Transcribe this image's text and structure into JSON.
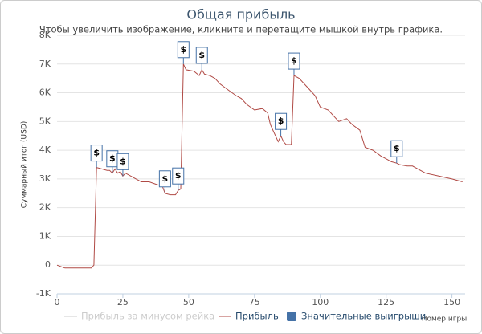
{
  "chart_data": {
    "type": "line",
    "title": "Общая прибыль",
    "subtitle": "Чтобы увеличить изображение, кликните и перетащите мышкой внутрь графика.",
    "y_label": "Суммарный итог (USD)",
    "x_label": "Номер игры",
    "xlim": [
      0,
      155
    ],
    "xticks": [
      0,
      25,
      50,
      75,
      100,
      125,
      150
    ],
    "ylim": [
      -1000,
      8000
    ],
    "yticks": [
      {
        "value": -1000,
        "label": "-1K"
      },
      0,
      {
        "value": 1000,
        "label": "1K"
      },
      {
        "value": 2000,
        "label": "2K"
      },
      {
        "value": 3000,
        "label": "3K"
      },
      {
        "value": 4000,
        "label": "4K"
      },
      {
        "value": 5000,
        "label": "5K"
      },
      {
        "value": 6000,
        "label": "6K"
      },
      {
        "value": 7000,
        "label": "7K"
      },
      {
        "value": 8000,
        "label": "8K"
      }
    ],
    "grid": true,
    "series": [
      {
        "name": "Прибыль за минусом рейка",
        "color": "#cccccc",
        "visible": false
      },
      {
        "name": "Прибыль",
        "color": "#b04a45",
        "x": [
          0,
          3,
          13,
          14,
          15,
          17,
          19,
          20,
          21,
          22,
          23,
          24,
          25,
          26,
          28,
          30,
          32,
          35,
          38,
          40,
          41,
          43,
          45,
          46,
          47,
          48,
          49,
          52,
          54,
          55,
          56,
          58,
          60,
          62,
          65,
          68,
          70,
          72,
          75,
          78,
          80,
          81,
          82,
          84,
          85,
          86,
          87,
          89,
          90,
          92,
          95,
          98,
          100,
          103,
          105,
          107,
          110,
          112,
          115,
          117,
          120,
          123,
          125,
          127,
          129,
          130,
          133,
          135,
          138,
          140,
          145,
          150,
          154
        ],
        "values": [
          0,
          -100,
          -100,
          0,
          3400,
          3350,
          3300,
          3300,
          3200,
          3350,
          3200,
          3250,
          3100,
          3200,
          3100,
          3000,
          2900,
          2900,
          2800,
          2750,
          2500,
          2450,
          2450,
          2600,
          2650,
          7000,
          6800,
          6750,
          6600,
          6800,
          6650,
          6600,
          6500,
          6300,
          6100,
          5900,
          5800,
          5600,
          5400,
          5450,
          5300,
          4900,
          4700,
          4300,
          4500,
          4300,
          4200,
          4200,
          6600,
          6500,
          6200,
          5900,
          5500,
          5400,
          5200,
          5000,
          5100,
          4900,
          4700,
          4100,
          4000,
          3800,
          3700,
          3600,
          3550,
          3500,
          3450,
          3450,
          3300,
          3200,
          3100,
          3000,
          2900
        ]
      },
      {
        "name": "Значительные выигрыши",
        "color": "#4572a7",
        "marker_label": "$",
        "x": [
          15,
          21,
          25,
          41,
          46,
          48,
          55,
          85,
          90,
          129
        ],
        "values": [
          3400,
          3200,
          3100,
          2500,
          2600,
          7000,
          6800,
          4500,
          6600,
          3550
        ]
      }
    ]
  }
}
